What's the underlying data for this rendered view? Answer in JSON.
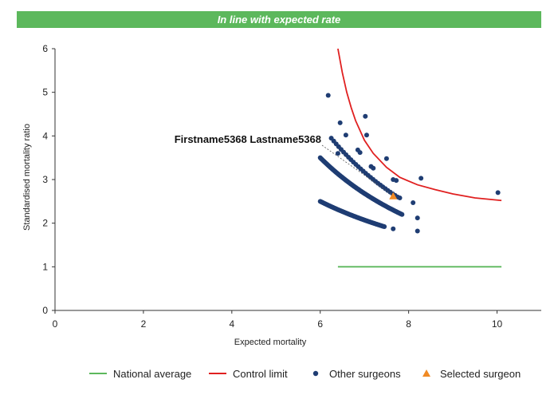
{
  "banner": {
    "text": "In line with expected rate",
    "color": "#5cb85c"
  },
  "chart_data": {
    "type": "scatter",
    "xlabel": "Expected mortality",
    "ylabel": "Standardised mortality ratio",
    "xlim": [
      0,
      11
    ],
    "ylim": [
      0,
      6
    ],
    "xticks": [
      0,
      2,
      4,
      6,
      8,
      10
    ],
    "yticks": [
      0,
      1,
      2,
      3,
      4,
      5,
      6
    ],
    "legend_position": "bottom",
    "annotation": {
      "text": "Firstname5368 Lastname5368",
      "target": [
        7.65,
        2.62
      ]
    },
    "series": [
      {
        "name": "National average",
        "kind": "line",
        "color": "#5cb85c",
        "x": [
          6.4,
          10.1
        ],
        "y": [
          1.0,
          1.0
        ]
      },
      {
        "name": "Control limit",
        "kind": "line",
        "color": "#e02020",
        "x": [
          6.4,
          6.5,
          6.6,
          6.7,
          6.8,
          7.0,
          7.2,
          7.5,
          7.8,
          8.2,
          8.6,
          9.0,
          9.5,
          10.1
        ],
        "y": [
          6.0,
          5.45,
          5.0,
          4.65,
          4.35,
          3.9,
          3.6,
          3.28,
          3.05,
          2.88,
          2.77,
          2.67,
          2.58,
          2.52
        ]
      },
      {
        "name": "Other surgeons",
        "kind": "scatter",
        "color": "#1f3d73",
        "bands": [
          {
            "x_start": 6.0,
            "x_end": 7.85,
            "y_start": 3.5,
            "y_end": 2.2,
            "n": 110
          },
          {
            "x_start": 6.0,
            "x_end": 7.45,
            "y_start": 2.5,
            "y_end": 1.92,
            "n": 90
          },
          {
            "x_start": 6.25,
            "x_end": 7.75,
            "y_start": 3.95,
            "y_end": 2.6,
            "n": 28
          }
        ],
        "x": [
          6.18,
          6.45,
          6.58,
          7.02,
          7.05,
          6.85,
          6.9,
          7.15,
          7.2,
          7.5,
          7.65,
          7.72,
          7.8,
          8.1,
          8.28,
          8.2,
          8.2,
          7.65,
          10.02,
          6.4
        ],
        "y": [
          4.93,
          4.3,
          4.02,
          4.45,
          4.02,
          3.68,
          3.62,
          3.3,
          3.26,
          3.48,
          3.0,
          2.98,
          2.58,
          2.47,
          3.03,
          2.12,
          1.82,
          1.87,
          2.7,
          3.6
        ]
      },
      {
        "name": "Selected surgeon",
        "kind": "marker",
        "color": "#f08a24",
        "x": [
          7.65
        ],
        "y": [
          2.62
        ]
      }
    ]
  }
}
